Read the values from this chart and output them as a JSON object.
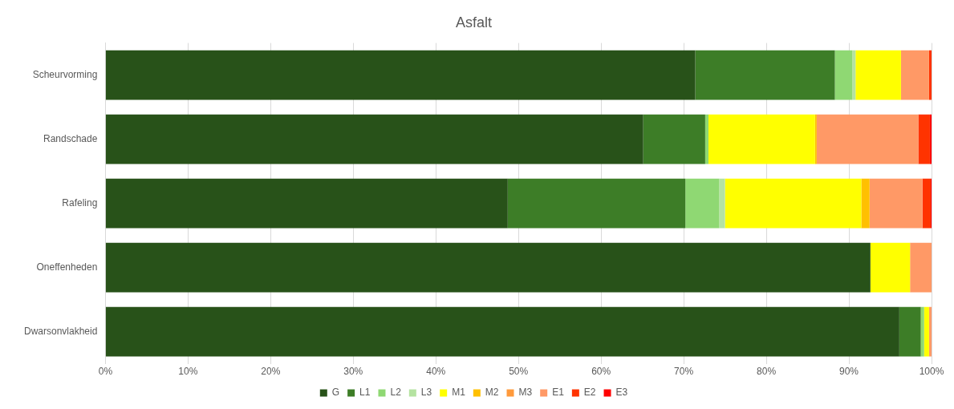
{
  "chart_data": {
    "type": "bar",
    "title": "Asfalt",
    "orientation": "horizontal",
    "stacked": true,
    "categories": [
      "Scheurvorming",
      "Randschade",
      "Rafeling",
      "Oneffenheden",
      "Dwarsonvlakheid"
    ],
    "series": [
      {
        "name": "G",
        "color": "#285219",
        "values": [
          71.4,
          65.1,
          48.7,
          92.6,
          96.1
        ]
      },
      {
        "name": "L1",
        "color": "#3d7d27",
        "values": [
          16.9,
          7.5,
          21.5,
          0,
          2.6
        ]
      },
      {
        "name": "L2",
        "color": "#8fd873",
        "values": [
          2.1,
          0.4,
          4.1,
          0,
          0.4
        ]
      },
      {
        "name": "L3",
        "color": "#b5e3a1",
        "values": [
          0.4,
          0,
          0.7,
          0,
          0
        ]
      },
      {
        "name": "M1",
        "color": "#ffff00",
        "values": [
          5.5,
          12.9,
          16.5,
          4.8,
          0.6
        ]
      },
      {
        "name": "M2",
        "color": "#ffc000",
        "values": [
          0,
          0.2,
          1,
          0,
          0
        ]
      },
      {
        "name": "M3",
        "color": "#ff9a3c",
        "values": [
          0,
          0,
          0,
          0,
          0
        ]
      },
      {
        "name": "E1",
        "color": "#ff9966",
        "values": [
          3.4,
          12.3,
          6.4,
          2.6,
          0.3
        ]
      },
      {
        "name": "E2",
        "color": "#ff3300",
        "values": [
          0.3,
          1.4,
          1,
          0,
          0
        ]
      },
      {
        "name": "E3",
        "color": "#ff0000",
        "values": [
          0,
          0.2,
          0.1,
          0,
          0
        ]
      }
    ],
    "xlim": [
      0,
      100
    ],
    "xticks": [
      {
        "value": 0,
        "label": "0%"
      },
      {
        "value": 10,
        "label": "10%"
      },
      {
        "value": 20,
        "label": "20%"
      },
      {
        "value": 30,
        "label": "30%"
      },
      {
        "value": 40,
        "label": "40%"
      },
      {
        "value": 50,
        "label": "50%"
      },
      {
        "value": 60,
        "label": "60%"
      },
      {
        "value": 70,
        "label": "70%"
      },
      {
        "value": 80,
        "label": "80%"
      },
      {
        "value": 90,
        "label": "90%"
      },
      {
        "value": 100,
        "label": "100%"
      }
    ],
    "grid": "x",
    "legend": "bottom"
  }
}
